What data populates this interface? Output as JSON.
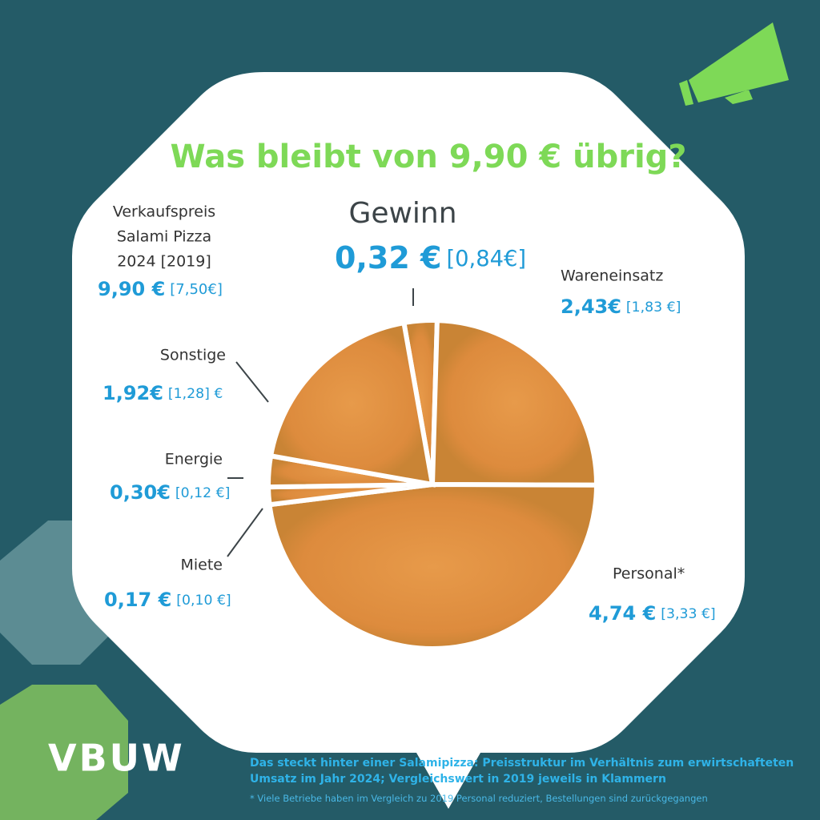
{
  "title": "Was bleibt von 9,90 € übrig?",
  "logo": "VBUW",
  "caption": "Das steckt hinter einer Salamipizza: Preisstruktur im Verhältnis zum erwirtschafteten Umsatz im Jahr 2024; Vergleichswert in 2019 jeweils in Klammern",
  "footnote": "* Viele Betriebe haben im Vergleich zu 2019 Personal reduziert, Bestellungen sind zurückgegangen",
  "chart_data": {
    "type": "pie",
    "total": {
      "label_lines": [
        "Verkaufspreis",
        "Salami Pizza",
        "2024 [2019]"
      ],
      "value": 9.9,
      "value_label": "9,90 €",
      "compare_value": 7.5,
      "compare_label": "[7,50€]"
    },
    "categories": [
      "Gewinn",
      "Wareneinsatz",
      "Personal*",
      "Miete",
      "Energie",
      "Sonstige"
    ],
    "values": [
      0.32,
      2.43,
      4.74,
      0.17,
      0.3,
      1.92
    ],
    "value_labels": [
      "0,32 €",
      "2,43€",
      "4,74 €",
      "0,17 €",
      "0,30€",
      "1,92€"
    ],
    "compare_values": [
      0.84,
      1.83,
      3.33,
      0.1,
      0.12,
      1.28
    ],
    "compare_labels": [
      "[0,84€]",
      "[1,83 €]",
      "[3,33 €]",
      "[0,10 €]",
      "[0,12 €]",
      "[1,28] €"
    ]
  }
}
